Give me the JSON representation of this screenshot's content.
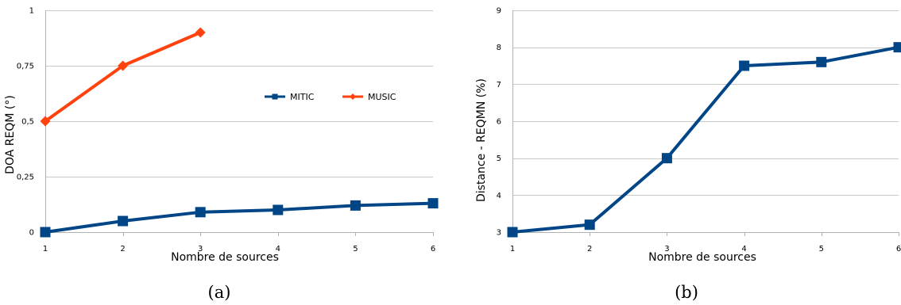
{
  "chart_data": [
    {
      "id": "a",
      "type": "line",
      "caption": "(a)",
      "xlabel": "Nombre de sources",
      "ylabel": "DOA REQM (°)",
      "x": [
        1,
        2,
        3,
        4,
        5,
        6
      ],
      "xlim": [
        1,
        6
      ],
      "ylim": [
        0,
        1
      ],
      "xticks": [
        "1",
        "2",
        "3",
        "4",
        "5",
        "6"
      ],
      "yticks": [
        {
          "v": 0,
          "label": "0"
        },
        {
          "v": 0.25,
          "label": "0,25"
        },
        {
          "v": 0.5,
          "label": "0,5"
        },
        {
          "v": 0.75,
          "label": "0,75"
        },
        {
          "v": 1,
          "label": "1"
        }
      ],
      "grid": true,
      "legend_position": "right",
      "series": [
        {
          "name": "MITIC",
          "color": "#004586",
          "marker": "square",
          "x": [
            1,
            2,
            3,
            4,
            5,
            6
          ],
          "values": [
            0,
            0.05,
            0.09,
            0.1,
            0.12,
            0.13
          ]
        },
        {
          "name": "MUSIC",
          "color": "#ff420e",
          "marker": "diamond",
          "x": [
            1,
            2,
            3
          ],
          "values": [
            0.5,
            0.75,
            0.9
          ]
        }
      ]
    },
    {
      "id": "b",
      "type": "line",
      "caption": "(b)",
      "xlabel": "Nombre de sources",
      "ylabel": "Distance - REQMN (%)",
      "x": [
        1,
        2,
        3,
        4,
        5,
        6
      ],
      "xlim": [
        1,
        6
      ],
      "ylim": [
        3,
        9
      ],
      "xticks": [
        "1",
        "2",
        "3",
        "4",
        "5",
        "6"
      ],
      "yticks": [
        {
          "v": 3,
          "label": "3"
        },
        {
          "v": 4,
          "label": "4"
        },
        {
          "v": 5,
          "label": "5"
        },
        {
          "v": 6,
          "label": "6"
        },
        {
          "v": 7,
          "label": "7"
        },
        {
          "v": 8,
          "label": "8"
        },
        {
          "v": 9,
          "label": "9"
        }
      ],
      "grid": true,
      "legend_position": "none",
      "series": [
        {
          "name": "",
          "color": "#004586",
          "marker": "square",
          "x": [
            1,
            2,
            3,
            4,
            5,
            6
          ],
          "values": [
            3,
            3.2,
            5,
            7.5,
            7.6,
            8
          ]
        }
      ]
    }
  ]
}
